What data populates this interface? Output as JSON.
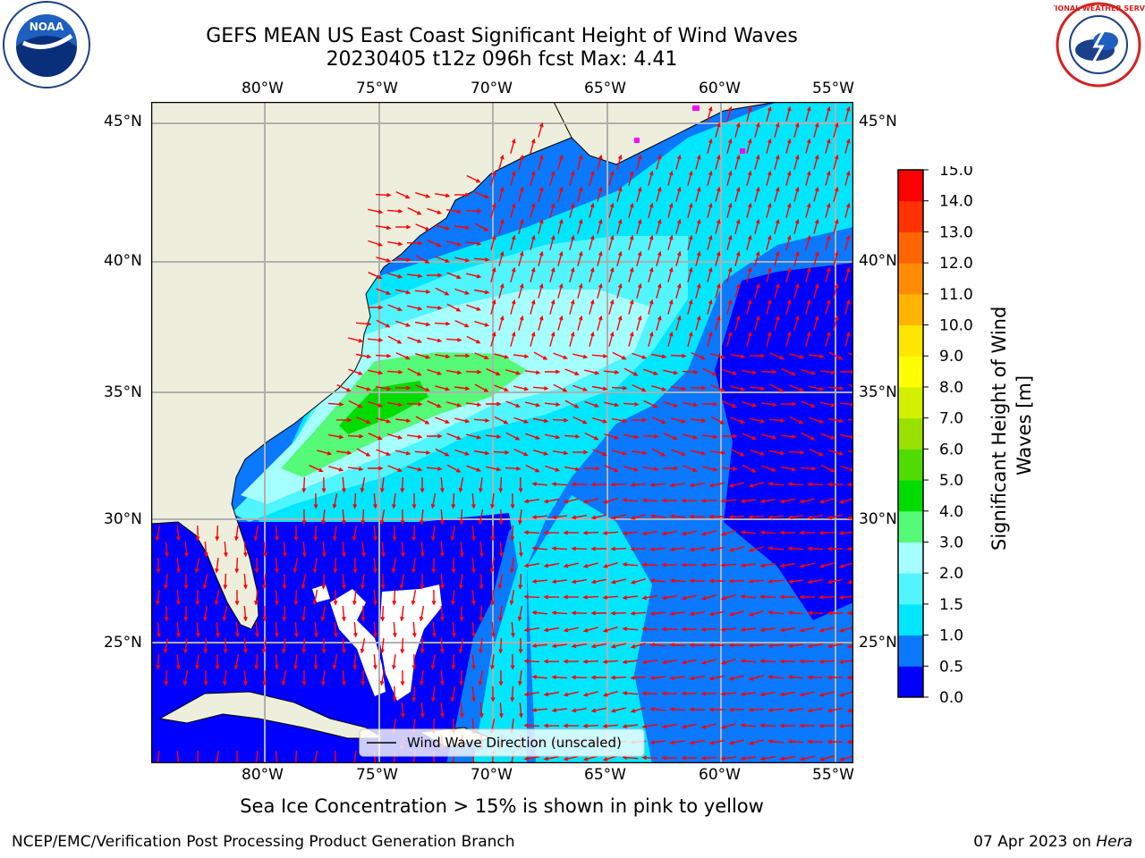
{
  "title": {
    "line1": "GEFS MEAN US East Coast Significant Height of Wind Waves",
    "line2": "20230405 t12z 096h fcst   Max: 4.41"
  },
  "axes": {
    "lon_labels": [
      "80°W",
      "75°W",
      "70°W",
      "65°W",
      "60°W",
      "55°W"
    ],
    "lat_labels": [
      "45°N",
      "40°N",
      "35°N",
      "30°N",
      "25°N"
    ]
  },
  "legend": {
    "label": "Wind Wave Direction (unscaled)"
  },
  "colorbar": {
    "label": "Significant Height of Wind Waves [m]",
    "ticks": [
      "0.0",
      "0.5",
      "1.0",
      "1.5",
      "2.0",
      "3.0",
      "4.0",
      "5.0",
      "6.0",
      "7.0",
      "8.0",
      "9.0",
      "10.0",
      "11.0",
      "12.0",
      "13.0",
      "14.0",
      "15.0"
    ],
    "colors": [
      "#0000ff",
      "#0a78ff",
      "#00e6ff",
      "#50f5ff",
      "#a6ffff",
      "#55fa78",
      "#00dc00",
      "#50dc00",
      "#9be100",
      "#d2f000",
      "#ffff00",
      "#ffe600",
      "#ffb400",
      "#ff8c00",
      "#ff6400",
      "#ff3200",
      "#ff0000"
    ]
  },
  "note": "Sea Ice Concentration > 15% is shown in pink to yellow",
  "footer": {
    "left": "NCEP/EMC/Verification Post Processing Product Generation Branch",
    "right_prefix": "07 Apr 2023 on ",
    "right_host": "Hera"
  },
  "logos": {
    "noaa": "NOAA",
    "nws_ring": "NATIONAL WEATHER SERVICE"
  },
  "map": {
    "land_color": "#eeeedc",
    "arrow_color": "#ff0000",
    "grid_color": "#b0b0b0"
  }
}
